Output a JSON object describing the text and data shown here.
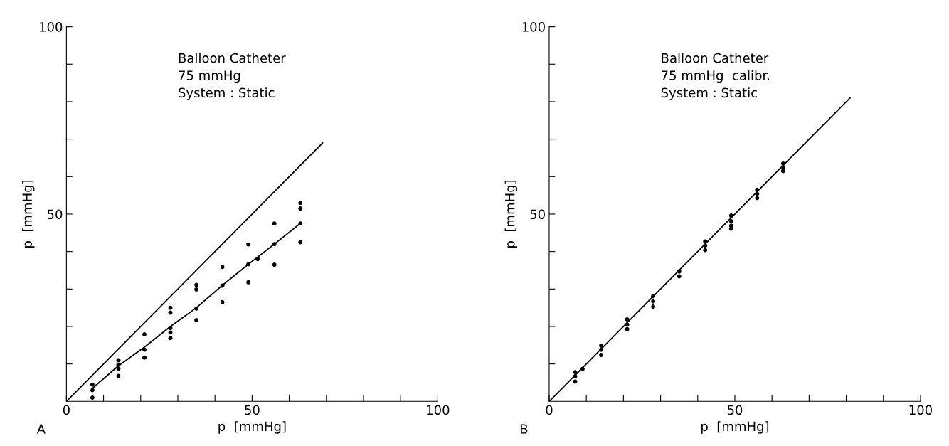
{
  "chart_data": [
    {
      "type": "scatter",
      "xlabel": "p  [mmHg]",
      "ylabel": "p  [mmHg]",
      "xlim": [
        0,
        100
      ],
      "ylim": [
        0,
        100
      ],
      "xticks": [
        0,
        {
          "value": 10,
          "label": null
        },
        {
          "value": 20,
          "label": null
        },
        {
          "value": 30,
          "label": null
        },
        {
          "value": 40,
          "label": null
        },
        50,
        {
          "value": 60,
          "label": null
        },
        {
          "value": 70,
          "label": null
        },
        {
          "value": 80,
          "label": null
        },
        {
          "value": 90,
          "label": null
        },
        100
      ],
      "yticks": [
        {
          "value": 10,
          "label": null
        },
        {
          "value": 20,
          "label": null
        },
        {
          "value": 30,
          "label": null
        },
        {
          "value": 40,
          "label": null
        },
        50,
        {
          "value": 60,
          "label": null
        },
        {
          "value": 70,
          "label": null
        },
        {
          "value": 80,
          "label": null
        },
        {
          "value": 90,
          "label": null
        },
        100
      ],
      "grid": false,
      "legend": false,
      "annotations": [
        "A",
        "Balloon Catheter\n75 mmHg\nSystem : Static"
      ],
      "series": [
        {
          "color": "#000000",
          "marker": "circle",
          "x": [
            7,
            7,
            7,
            14,
            14,
            14,
            14,
            21,
            21,
            21,
            28,
            28,
            28,
            28,
            28,
            35,
            35,
            35,
            35,
            42,
            42,
            42,
            49,
            49,
            49,
            51.5,
            56,
            56,
            56,
            63,
            63,
            63,
            63
          ],
          "values": [
            4.5,
            3,
            1,
            11,
            9.8,
            8.7,
            6.8,
            17.9,
            13.8,
            11.7,
            25,
            23.7,
            19.6,
            18.4,
            16.9,
            31.1,
            29.9,
            24.8,
            21.7,
            35.9,
            30.9,
            26.5,
            41.9,
            36.6,
            31.8,
            38,
            47.5,
            42,
            36.5,
            53,
            51.5,
            47.5,
            42.5
          ]
        },
        {
          "type": "line",
          "color": "#000000",
          "line_style": "solid",
          "x": [
            0,
            69
          ],
          "values": [
            0,
            69
          ]
        },
        {
          "type": "line",
          "color": "#000000",
          "line_style": "solid",
          "x": [
            7,
            14,
            21,
            28,
            35,
            42,
            49,
            56,
            63
          ],
          "values": [
            3.5,
            9.5,
            14.5,
            20,
            25,
            31,
            36.6,
            42,
            47.5
          ]
        }
      ]
    },
    {
      "type": "scatter",
      "xlabel": "p  [mmHg]",
      "ylabel": "p  [mmHg]",
      "xlim": [
        0,
        100
      ],
      "ylim": [
        0,
        100
      ],
      "xticks": [
        0,
        {
          "value": 10,
          "label": null
        },
        {
          "value": 20,
          "label": null
        },
        {
          "value": 30,
          "label": null
        },
        {
          "value": 40,
          "label": null
        },
        50,
        {
          "value": 60,
          "label": null
        },
        {
          "value": 70,
          "label": null
        },
        {
          "value": 80,
          "label": null
        },
        {
          "value": 90,
          "label": null
        },
        100
      ],
      "yticks": [
        {
          "value": 10,
          "label": null
        },
        {
          "value": 20,
          "label": null
        },
        {
          "value": 30,
          "label": null
        },
        {
          "value": 40,
          "label": null
        },
        50,
        {
          "value": 60,
          "label": null
        },
        {
          "value": 70,
          "label": null
        },
        {
          "value": 80,
          "label": null
        },
        {
          "value": 90,
          "label": null
        },
        100
      ],
      "grid": false,
      "legend": false,
      "annotations": [
        "B",
        "Balloon Catheter\n75 mmHg  calibr.\nSystem : Static"
      ],
      "series": [
        {
          "color": "#000000",
          "marker": "circle",
          "x": [
            7,
            7,
            7,
            9,
            14,
            14,
            14,
            21,
            21,
            21,
            28,
            28,
            28,
            35,
            35,
            42,
            42,
            42,
            49,
            49,
            49,
            49,
            56,
            56,
            56,
            63,
            63,
            63
          ],
          "values": [
            7.8,
            6.7,
            5.3,
            8.7,
            14.9,
            13.8,
            12.4,
            21.9,
            20.5,
            19.3,
            28.1,
            26.7,
            25.3,
            34.7,
            33.4,
            42.7,
            41.6,
            40.4,
            49.6,
            48.1,
            46.9,
            46.1,
            56.5,
            55.4,
            54.3,
            63.5,
            62.5,
            61.5
          ]
        },
        {
          "type": "line",
          "color": "#000000",
          "line_style": "solid",
          "x": [
            0,
            81
          ],
          "values": [
            0,
            81
          ]
        }
      ]
    }
  ]
}
